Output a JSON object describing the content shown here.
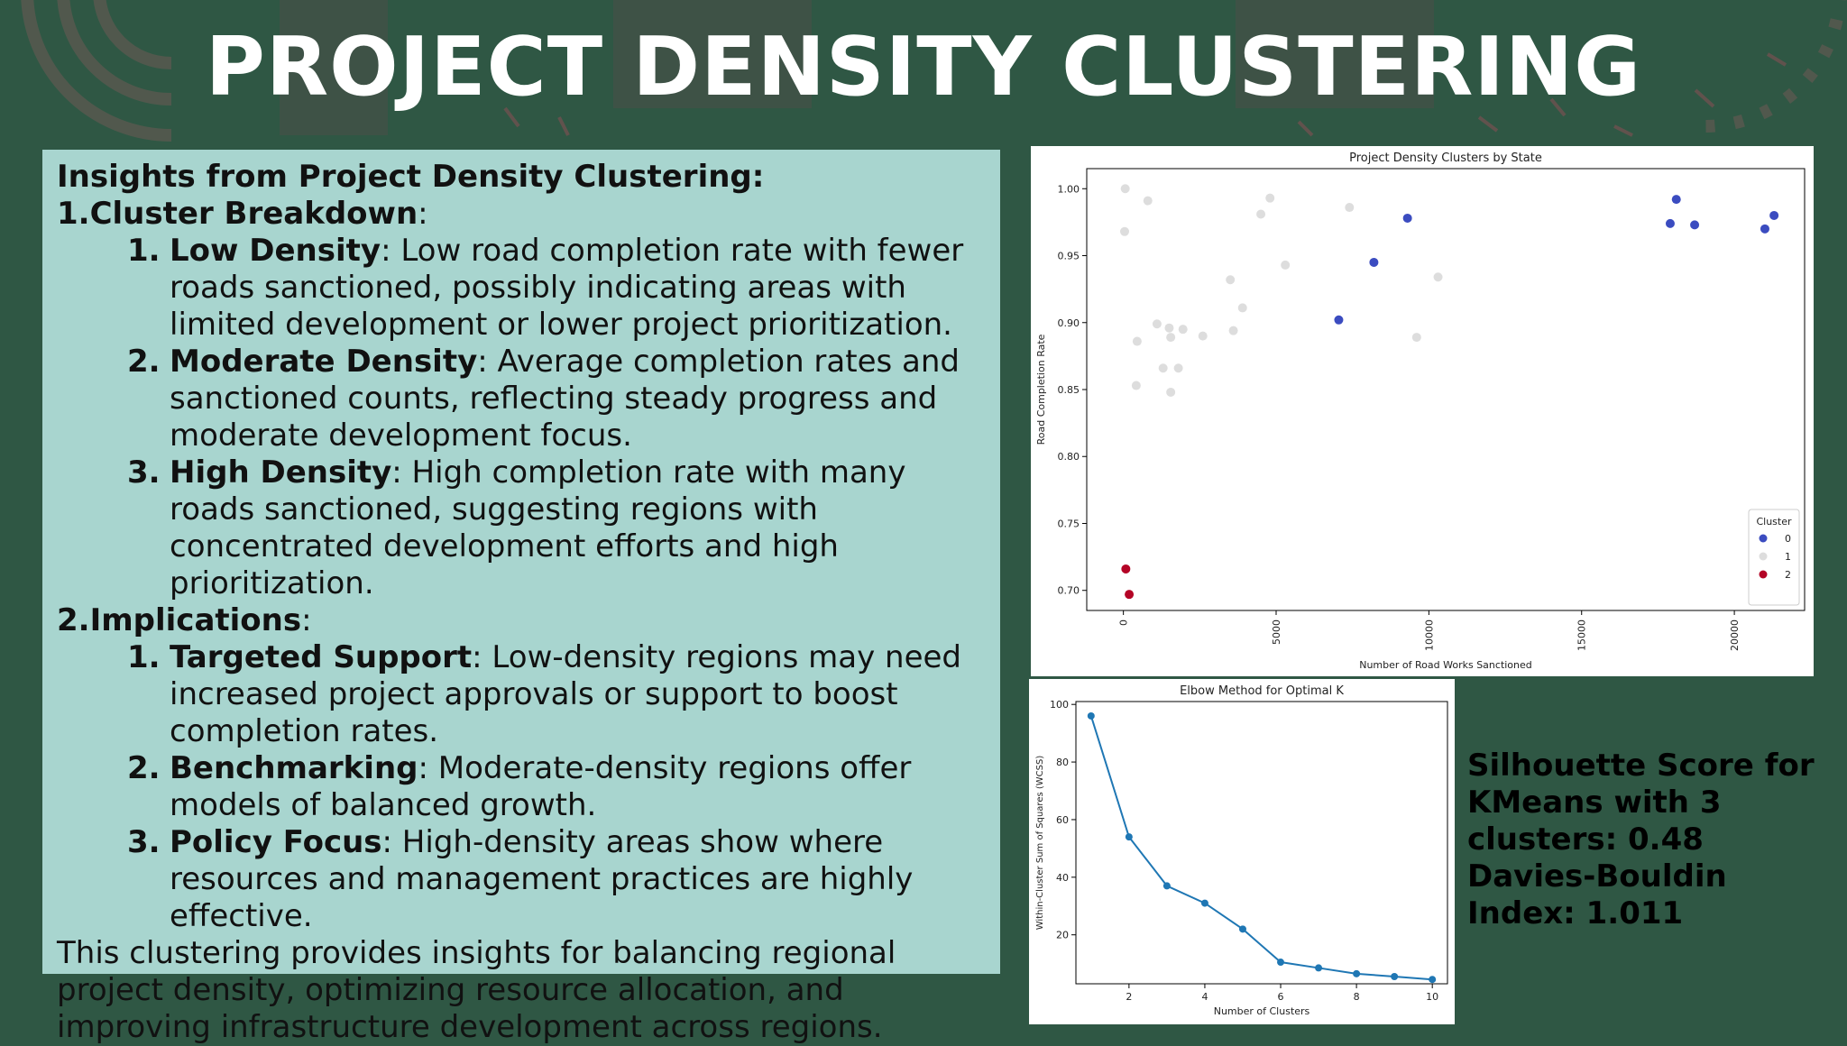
{
  "slide": {
    "title": "PROJECT DENSITY CLUSTERING",
    "colors": {
      "background": "#2f5744",
      "panel": "#a8d5cf",
      "decor": "#6e5a55"
    }
  },
  "insights": {
    "heading": "Insights from Project Density Clustering:",
    "sections": [
      {
        "number": "1.",
        "title": "Cluster Breakdown",
        "items": [
          {
            "number": "1.",
            "term": "Low Density",
            "text": ": Low road completion rate with fewer roads sanctioned, possibly indicating areas with limited development or lower project prioritization."
          },
          {
            "number": "2.",
            "term": "Moderate Density",
            "text": ": Average completion rates and sanctioned counts, reflecting steady progress and moderate development focus."
          },
          {
            "number": "3.",
            "term": "High Density",
            "text": ": High completion rate with many roads sanctioned, suggesting regions with concentrated development efforts and high prioritization."
          }
        ]
      },
      {
        "number": "2.",
        "title": "Implications",
        "items": [
          {
            "number": "1.",
            "term": "Targeted Support",
            "text": ": Low-density regions may need increased project approvals or support to boost completion rates."
          },
          {
            "number": "2.",
            "term": "Benchmarking",
            "text": ": Moderate-density regions offer models of balanced growth."
          },
          {
            "number": "3.",
            "term": "Policy Focus",
            "text": ": High-density areas show where resources and management practices are highly effective."
          }
        ]
      }
    ],
    "conclusion": "This clustering provides insights for balancing regional project density, optimizing resource allocation, and improving infrastructure development across regions."
  },
  "metrics": {
    "silhouette": "Silhouette Score for KMeans with 3 clusters: 0.48",
    "davies_bouldin": "Davies-Bouldin Index: 1.011"
  },
  "chart_data": [
    {
      "type": "scatter",
      "title": "Project Density Clusters by State",
      "xlabel": "Number of Road Works Sanctioned",
      "ylabel": "Road Completion Rate",
      "xlim": [
        -1200,
        22300
      ],
      "ylim": [
        0.685,
        1.015
      ],
      "xticks": [
        "0",
        "5000",
        "10000",
        "15000",
        "20000"
      ],
      "yticks": [
        "0.70",
        "0.75",
        "0.80",
        "0.85",
        "0.90",
        "0.95",
        "1.00"
      ],
      "grid": false,
      "legend": {
        "title": "Cluster",
        "position": "bottom-right",
        "entries": [
          "0",
          "1",
          "2"
        ]
      },
      "series": [
        {
          "name": "0",
          "color": "#3b4cc0",
          "points": [
            [
              7050,
              0.902
            ],
            [
              8200,
              0.945
            ],
            [
              9300,
              0.978
            ],
            [
              17900,
              0.974
            ],
            [
              18100,
              0.992
            ],
            [
              18700,
              0.973
            ],
            [
              21000,
              0.97
            ],
            [
              21300,
              0.98
            ]
          ]
        },
        {
          "name": "1",
          "color": "#dddddd",
          "points": [
            [
              60,
              1.0
            ],
            [
              40,
              0.968
            ],
            [
              450,
              0.886
            ],
            [
              420,
              0.853
            ],
            [
              800,
              0.991
            ],
            [
              1100,
              0.899
            ],
            [
              1300,
              0.866
            ],
            [
              1500,
              0.896
            ],
            [
              1550,
              0.889
            ],
            [
              1550,
              0.848
            ],
            [
              1800,
              0.866
            ],
            [
              1950,
              0.895
            ],
            [
              2600,
              0.89
            ],
            [
              3500,
              0.932
            ],
            [
              3600,
              0.894
            ],
            [
              3900,
              0.911
            ],
            [
              4500,
              0.981
            ],
            [
              4800,
              0.993
            ],
            [
              5300,
              0.943
            ],
            [
              7400,
              0.986
            ],
            [
              9600,
              0.889
            ],
            [
              10300,
              0.934
            ]
          ]
        },
        {
          "name": "2",
          "color": "#b40426",
          "points": [
            [
              80,
              0.716
            ],
            [
              190,
              0.697
            ]
          ]
        }
      ]
    },
    {
      "type": "line",
      "title": "Elbow Method for Optimal K",
      "xlabel": "Number of Clusters",
      "ylabel": "Within-Cluster Sum of Squares (WCSS)",
      "xlim": [
        0.6,
        10.4
      ],
      "ylim": [
        3,
        101
      ],
      "xticks": [
        "2",
        "4",
        "6",
        "8",
        "10"
      ],
      "yticks": [
        "20",
        "40",
        "60",
        "80",
        "100"
      ],
      "grid": false,
      "color": "#1f77b4",
      "x": [
        1,
        2,
        3,
        4,
        5,
        6,
        7,
        8,
        9,
        10
      ],
      "y": [
        96,
        54,
        37,
        31,
        22,
        10.5,
        8.5,
        6.5,
        5.5,
        4.5
      ]
    }
  ]
}
